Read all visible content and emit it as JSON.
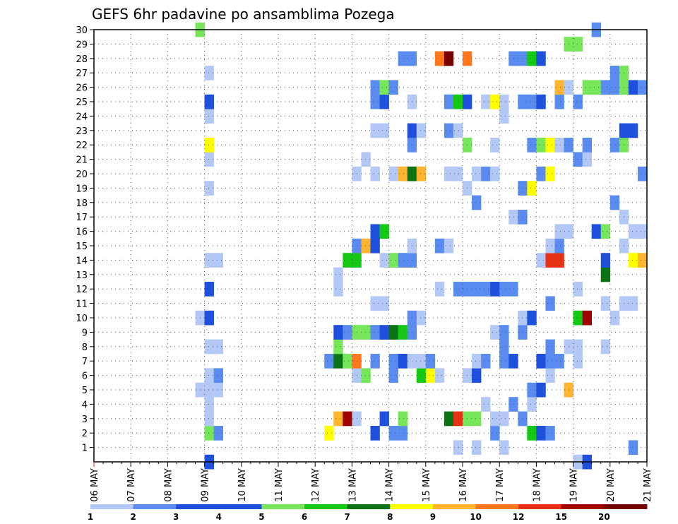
{
  "chart_data": {
    "type": "heatmap",
    "title": "GEFS 6hr padavine po ansamblima Pozega",
    "xlabel": "",
    "ylabel": "",
    "y_ticks": [
      "1",
      "2",
      "3",
      "4",
      "5",
      "6",
      "7",
      "8",
      "9",
      "10",
      "11",
      "12",
      "13",
      "14",
      "15",
      "16",
      "17",
      "18",
      "19",
      "20",
      "21",
      "22",
      "23",
      "24",
      "25",
      "26",
      "27",
      "28",
      "29",
      "30"
    ],
    "x_ticks": [
      "06 MAY",
      "07 MAY",
      "08 MAY",
      "09 MAY",
      "10 MAY",
      "11 MAY",
      "12 MAY",
      "13 MAY",
      "14 MAY",
      "15 MAY",
      "16 MAY",
      "17 MAY",
      "18 MAY",
      "19 MAY",
      "20 MAY",
      "21 MAY"
    ],
    "x_range_steps": [
      0,
      60
    ],
    "y_range": [
      0,
      30
    ],
    "grid": true,
    "colorbar": {
      "labels": [
        "1",
        "2",
        "3",
        "4",
        "5",
        "6",
        "7",
        "8",
        "9",
        "10",
        "12",
        "15",
        "20"
      ],
      "colors": [
        "#b4c8f5",
        "#5a8cf0",
        "#1e50dc",
        "#1e50dc",
        "#78e65a",
        "#14c814",
        "#0a7314",
        "#ffff00",
        "#ffb432",
        "#ff781e",
        "#e63214",
        "#a00000",
        "#780000"
      ]
    },
    "palette": {
      "a": "#b4c8f5",
      "b": "#5a8cf0",
      "c": "#1e50dc",
      "d": "#78e65a",
      "e": "#14c814",
      "f": "#0a7314",
      "g": "#ffff00",
      "h": "#ffb432",
      "i": "#ff781e",
      "j": "#e63214",
      "k": "#a00000",
      "l": "#780000"
    },
    "rows": {
      "30": "...........d..........................................b.",
      "29": "...................................................dd.....",
      "28": ".................................bb..il.i....bbec.............",
      "27": "............a...........................................bd",
      "26": "..............................bdb.................ha.ddbbdcbbcbaa..a",
      "25": "............c.................bc..a...bec.aga.bbc.b.b..........ca",
      "24": "............a...............................a.................bj..ef",
      "23": "..............................aa..ca..ba.................cc....",
      "22": "............g.....................b.....d..a...bdgab.b..bd",
      "21": "............a................a......................ba",
      "20": "............................a.a.ahfh..aa.aba....bg.........b..aa..cg",
      "19": "............a...........................a.....bg..............hb",
      "18": ".........................................b..............b........a",
      "17": ".............................................ab..........a..",
      "16": "..............................ce..................aa..cd..aa..a",
      "15": "............................bhc...a..ba..........ab......a.........",
      "14": "............aa.............ee..adbb.............ajj....c..ghbec",
      "13": "..........................a............................f",
      "12": "............c.............a..........a.bbbbcbb......a",
      "11": "..............................aa.................b.....a.aa.a",
      "10": "...........ac.....................ba..........ac....ek..a",
      "9": "..........................cbddbcfeb........ab.b",
      "8": "............aa............d.................b....b.aa..a",
      "7": ".........................bfdi.b.bcaab....ab.bc..cbb.a.......bc",
      "6": "............ab..............ad..b..ega..ac.......a",
      "5": "...........aaa.................................bc..h..........bee.aa",
      "4": "............a.............................a..b.a.......................cec",
      "3": "............a.............hka..c.d....fjdd.aa.b",
      "2": "............db...........g....c.bb.........b...ecb",
      "1": ".......................................a.a..a.............b........c",
      "0": "............c.......................................ac.........b"
    }
  }
}
